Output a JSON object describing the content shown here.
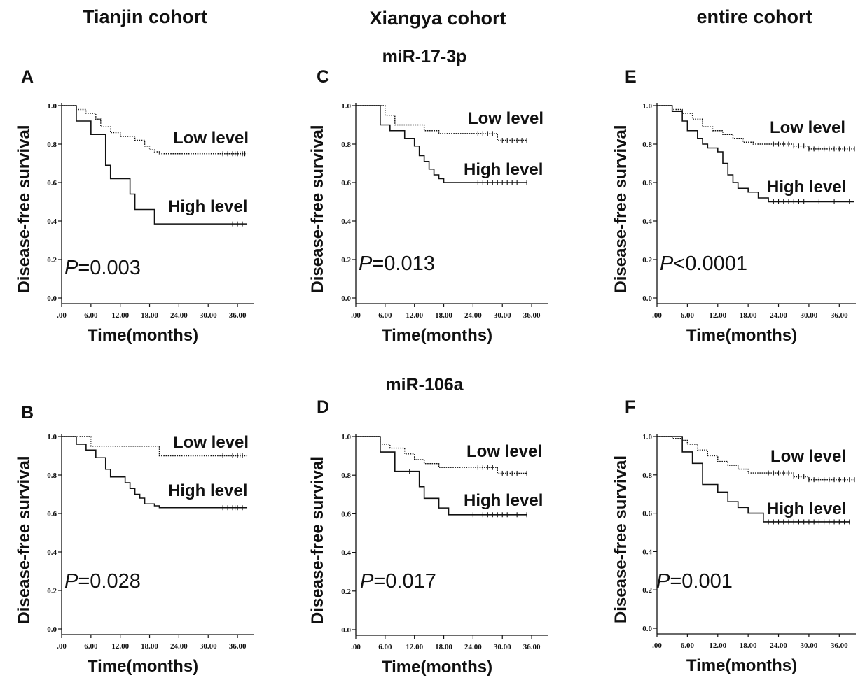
{
  "headers": {
    "tianjin": "Tianjin cohort",
    "xiangya": "Xiangya cohort",
    "entire": "entire cohort",
    "row1": "miR-17-3p",
    "row2": "miR-106a"
  },
  "chart_data": [
    {
      "type": "line",
      "panel": "A",
      "xlabel": "Time(months)",
      "ylabel": "Disease-free survival",
      "xlim": [
        0,
        39
      ],
      "ylim": [
        0,
        1
      ],
      "xticks": [
        ".00",
        "6.00",
        "12.00",
        "18.00",
        "24.00",
        "30.00",
        "36.00"
      ],
      "yticks": [
        "0.0",
        "0.2",
        "0.4",
        "0.6",
        "0.8",
        "1.0"
      ],
      "p_prefix": "P",
      "p_value": "=0.003",
      "series": [
        {
          "name": "Low level",
          "style": "dotted",
          "x": [
            0,
            3,
            5,
            7,
            8,
            10,
            12,
            15,
            17,
            18,
            19,
            20,
            38
          ],
          "y": [
            1.0,
            0.98,
            0.96,
            0.93,
            0.89,
            0.86,
            0.84,
            0.82,
            0.79,
            0.77,
            0.76,
            0.75,
            0.75
          ],
          "censored": [
            33,
            34,
            35,
            35.5,
            36,
            36.5,
            37,
            37.5
          ]
        },
        {
          "name": "High level",
          "style": "solid",
          "x": [
            0,
            3,
            6,
            9,
            10,
            14,
            15,
            19,
            38
          ],
          "y": [
            1.0,
            0.92,
            0.85,
            0.69,
            0.62,
            0.54,
            0.46,
            0.385,
            0.385
          ],
          "censored": [
            35,
            36,
            37
          ]
        }
      ]
    },
    {
      "type": "line",
      "panel": "B",
      "xlabel": "Time(months)",
      "ylabel": "Disease-free survival",
      "xlim": [
        0,
        39
      ],
      "ylim": [
        0,
        1
      ],
      "xticks": [
        ".00",
        "6.00",
        "12.00",
        "18.00",
        "24.00",
        "30.00",
        "36.00"
      ],
      "yticks": [
        "0.0",
        "0.2",
        "0.4",
        "0.6",
        "0.8",
        "1.0"
      ],
      "p_prefix": "P",
      "p_value": "=0.028",
      "series": [
        {
          "name": "Low level",
          "style": "dotted",
          "x": [
            0,
            6,
            20,
            38
          ],
          "y": [
            1.0,
            0.95,
            0.9,
            0.9
          ],
          "censored": [
            33,
            35,
            36,
            36.5,
            37
          ]
        },
        {
          "name": "High level",
          "style": "solid",
          "x": [
            0,
            3,
            5,
            7,
            9,
            10,
            13,
            14,
            15,
            16,
            17,
            19,
            20,
            38
          ],
          "y": [
            1.0,
            0.96,
            0.93,
            0.89,
            0.83,
            0.79,
            0.76,
            0.73,
            0.7,
            0.68,
            0.65,
            0.64,
            0.63,
            0.63
          ],
          "censored": [
            33,
            34,
            35,
            35.5,
            36,
            37
          ]
        }
      ]
    },
    {
      "type": "line",
      "panel": "C",
      "xlabel": "Time(months)",
      "ylabel": "Disease-free survival",
      "xlim": [
        0,
        39
      ],
      "ylim": [
        0,
        1
      ],
      "xticks": [
        ".00",
        "6.00",
        "12.00",
        "18.00",
        "24.00",
        "30.00",
        "36.00"
      ],
      "yticks": [
        "0.0",
        "0.2",
        "0.4",
        "0.6",
        "0.8",
        "1.0"
      ],
      "p_prefix": "P",
      "p_value": "=0.013",
      "series": [
        {
          "name": "Low level",
          "style": "dotted",
          "x": [
            0,
            6,
            8,
            14,
            17,
            29,
            35
          ],
          "y": [
            1.0,
            0.95,
            0.9,
            0.87,
            0.855,
            0.82,
            0.82
          ],
          "censored": [
            25,
            26,
            27,
            28,
            30,
            31,
            32,
            33,
            34,
            35
          ]
        },
        {
          "name": "High level",
          "style": "solid",
          "x": [
            0,
            5,
            7,
            10,
            12,
            13,
            14,
            15,
            16,
            17,
            18,
            35
          ],
          "y": [
            1.0,
            0.9,
            0.87,
            0.83,
            0.79,
            0.74,
            0.71,
            0.67,
            0.64,
            0.62,
            0.6,
            0.6
          ],
          "censored": [
            25,
            26,
            27,
            28,
            29,
            30,
            31,
            32,
            33,
            35
          ]
        }
      ]
    },
    {
      "type": "line",
      "panel": "D",
      "xlabel": "Time(months)",
      "ylabel": "Disease-free survival",
      "xlim": [
        0,
        39
      ],
      "ylim": [
        0,
        1
      ],
      "xticks": [
        ".00",
        "6.00",
        "12.00",
        "18.00",
        "24.00",
        "30.00",
        "36.00"
      ],
      "yticks": [
        "0.0",
        "0.2",
        "0.4",
        "0.6",
        "0.8",
        "1.0"
      ],
      "p_prefix": "P",
      "p_value": "=0.017",
      "series": [
        {
          "name": "Low level",
          "style": "dotted",
          "x": [
            0,
            5,
            7,
            10,
            12,
            14,
            17,
            29,
            35
          ],
          "y": [
            1.0,
            0.96,
            0.94,
            0.91,
            0.88,
            0.86,
            0.84,
            0.81,
            0.81
          ],
          "censored": [
            25,
            26,
            27,
            28,
            30,
            31,
            32,
            33,
            35
          ]
        },
        {
          "name": "High level",
          "style": "solid",
          "x": [
            0,
            5,
            8,
            13,
            14,
            17,
            19,
            35
          ],
          "y": [
            1.0,
            0.92,
            0.82,
            0.74,
            0.68,
            0.63,
            0.595,
            0.595
          ],
          "censored": [
            11,
            24,
            26,
            27,
            28,
            29,
            30,
            31,
            33,
            35
          ]
        }
      ]
    },
    {
      "type": "line",
      "panel": "E",
      "xlabel": "Time(months)",
      "ylabel": "Disease-free survival",
      "xlim": [
        0,
        39
      ],
      "ylim": [
        0,
        1
      ],
      "xticks": [
        ".00",
        "6.00",
        "12.00",
        "18.00",
        "24.00",
        "30.00",
        "36.00"
      ],
      "yticks": [
        "0.0",
        "0.2",
        "0.4",
        "0.6",
        "0.8",
        "1.0"
      ],
      "p_prefix": "P",
      "p_value": "<0.0001",
      "series": [
        {
          "name": "Low level",
          "style": "dotted",
          "x": [
            0,
            3,
            5,
            7,
            9,
            11,
            13,
            15,
            17,
            19,
            22,
            27,
            30,
            39
          ],
          "y": [
            1.0,
            0.98,
            0.96,
            0.93,
            0.89,
            0.87,
            0.85,
            0.83,
            0.81,
            0.8,
            0.8,
            0.79,
            0.775,
            0.775
          ],
          "censored": [
            23,
            24,
            25,
            26,
            27,
            28,
            29,
            30,
            31,
            32,
            33,
            34,
            35,
            36,
            37,
            38,
            39
          ]
        },
        {
          "name": "High level",
          "style": "solid",
          "x": [
            0,
            3,
            5,
            6,
            8,
            9,
            10,
            12,
            13,
            14,
            15,
            16,
            18,
            20,
            22,
            39
          ],
          "y": [
            1.0,
            0.97,
            0.92,
            0.87,
            0.83,
            0.8,
            0.78,
            0.76,
            0.7,
            0.64,
            0.6,
            0.57,
            0.55,
            0.52,
            0.5,
            0.5
          ],
          "censored": [
            23,
            24,
            25,
            26,
            27,
            28,
            29,
            32,
            35,
            38
          ]
        }
      ]
    },
    {
      "type": "line",
      "panel": "F",
      "xlabel": "Time(months)",
      "ylabel": "Disease-free survival",
      "xlim": [
        0,
        39
      ],
      "ylim": [
        0,
        1
      ],
      "xticks": [
        ".00",
        "6.00",
        "12.00",
        "18.00",
        "24.00",
        "30.00",
        "36.00"
      ],
      "yticks": [
        "0.0",
        "0.2",
        "0.4",
        "0.6",
        "0.8",
        "1.0"
      ],
      "p_prefix": "P",
      "p_value": "=0.001",
      "series": [
        {
          "name": "Low level",
          "style": "dotted",
          "x": [
            0,
            3,
            5,
            6,
            8,
            10,
            12,
            14,
            16,
            18,
            22,
            27,
            30,
            39
          ],
          "y": [
            1.0,
            0.99,
            0.98,
            0.96,
            0.93,
            0.9,
            0.87,
            0.85,
            0.83,
            0.81,
            0.81,
            0.79,
            0.775,
            0.775
          ],
          "censored": [
            22,
            23,
            24,
            25,
            26,
            27,
            28,
            29,
            30,
            31,
            32,
            33,
            34,
            35,
            36,
            37,
            38,
            39
          ]
        },
        {
          "name": "High level",
          "style": "solid",
          "x": [
            0,
            5,
            7,
            9,
            12,
            14,
            16,
            18,
            21,
            38
          ],
          "y": [
            1.0,
            0.92,
            0.86,
            0.75,
            0.71,
            0.66,
            0.63,
            0.6,
            0.555,
            0.555
          ],
          "censored": [
            22,
            23,
            24,
            25,
            26,
            27,
            28,
            29,
            30,
            31,
            32,
            33,
            34,
            35,
            36,
            37,
            38
          ]
        }
      ]
    }
  ]
}
